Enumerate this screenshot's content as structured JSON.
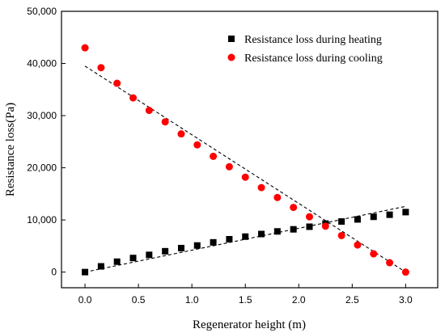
{
  "chart_data": {
    "type": "scatter",
    "xlabel": "Regenerator height (m)",
    "ylabel": "Resistance loss(Pa)",
    "xlim": [
      -0.22,
      3.3
    ],
    "ylim": [
      -3000,
      50000
    ],
    "x_ticks": [
      0.0,
      0.5,
      1.0,
      1.5,
      2.0,
      2.5,
      3.0
    ],
    "x_tick_labels": [
      "0.0",
      "0.5",
      "1.0",
      "1.5",
      "2.0",
      "2.5",
      "3.0"
    ],
    "y_ticks": [
      0,
      10000,
      20000,
      30000,
      40000,
      50000
    ],
    "y_tick_labels": [
      "0",
      "10,000",
      "20,000",
      "30,000",
      "40,000",
      "50,000"
    ],
    "legend_position": "top-right",
    "grid": false,
    "series": [
      {
        "name": "Resistance loss during heating",
        "marker": "square",
        "color": "#000000",
        "x": [
          0.0,
          0.15,
          0.3,
          0.45,
          0.6,
          0.75,
          0.9,
          1.05,
          1.2,
          1.35,
          1.5,
          1.65,
          1.8,
          1.95,
          2.1,
          2.25,
          2.4,
          2.55,
          2.7,
          2.85,
          3.0
        ],
        "y": [
          0,
          1100,
          2000,
          2700,
          3300,
          4000,
          4600,
          5100,
          5700,
          6300,
          6800,
          7300,
          7800,
          8200,
          8700,
          9300,
          9700,
          10100,
          10600,
          11000,
          11500
        ],
        "fit": {
          "x": [
            0.0,
            3.0
          ],
          "y": [
            0,
            12600
          ]
        }
      },
      {
        "name": "Resistance loss during cooling",
        "marker": "circle",
        "color": "#ff0000",
        "x": [
          0.0,
          0.15,
          0.3,
          0.45,
          0.6,
          0.75,
          0.9,
          1.05,
          1.2,
          1.35,
          1.5,
          1.65,
          1.8,
          1.95,
          2.1,
          2.25,
          2.4,
          2.55,
          2.7,
          2.85,
          3.0
        ],
        "y": [
          43000,
          39200,
          36200,
          33400,
          31000,
          28800,
          26500,
          24400,
          22200,
          20200,
          18200,
          16200,
          14300,
          12400,
          10600,
          8800,
          7000,
          5200,
          3500,
          1800,
          0
        ],
        "fit": {
          "x": [
            0.0,
            3.0
          ],
          "y": [
            39500,
            0
          ]
        }
      }
    ]
  }
}
